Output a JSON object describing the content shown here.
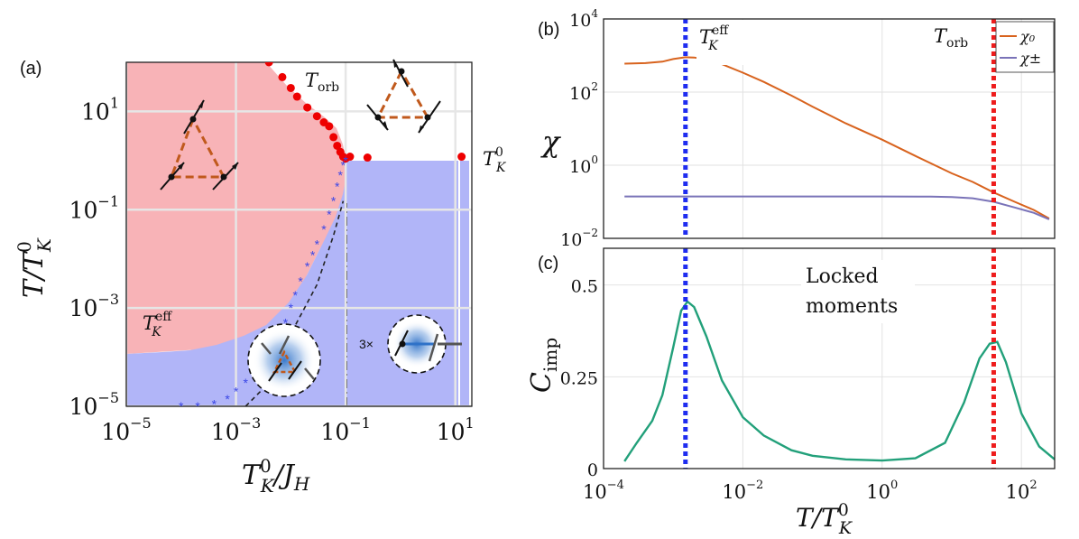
{
  "colors": {
    "red_region": "#f8b3b7",
    "blue_region": "#b1b5f8",
    "red_dots": "#ee0000",
    "blue_stars": "#3a46e6",
    "chi0": "#d8631e",
    "chipm": "#7a73b8",
    "cimp": "#22a07a",
    "vline_blue": "#1f2df0",
    "vline_red": "#ee1c1c",
    "triangle": "#c0591c"
  },
  "chart_data": [
    {
      "id": "a",
      "type": "scatter",
      "panel_label": "(a)",
      "xlabel_main": "T",
      "xlabel_sup": "0",
      "xlabel_sub": "K",
      "xlabel_rest": "/J",
      "xlabel_sub2": "H",
      "ylabel_main": "T/T",
      "ylabel_sup": "0",
      "ylabel_sub": "K",
      "x_scale": "log",
      "y_scale": "log",
      "xlim": [
        1e-05,
        20
      ],
      "ylim": [
        1e-05,
        100
      ],
      "x_ticks": [
        {
          "value": 1e-05,
          "base": "10",
          "exp": "−5"
        },
        {
          "value": 0.001,
          "base": "10",
          "exp": "−3"
        },
        {
          "value": 0.1,
          "base": "10",
          "exp": "−1"
        },
        {
          "value": 10,
          "base": "10",
          "exp": "1"
        }
      ],
      "y_ticks": [
        {
          "value": 1e-05,
          "base": "10",
          "exp": "−5"
        },
        {
          "value": 0.001,
          "base": "10",
          "exp": "−3"
        },
        {
          "value": 0.1,
          "base": "10",
          "exp": "−1"
        },
        {
          "value": 10,
          "base": "10",
          "exp": "1"
        }
      ],
      "annotations": {
        "torb_main": "T",
        "torb_sub": "orb",
        "tk0_main": "T",
        "tk0_sup": "0",
        "tk0_sub": "K",
        "tkeff_main": "T",
        "tkeff_sup": "eff",
        "tkeff_sub": "K",
        "multiplier": "3×"
      },
      "series": [
        {
          "name": "T_orb",
          "marker": "dot",
          "x": [
            0.004,
            0.007,
            0.01,
            0.013,
            0.02,
            0.03,
            0.04,
            0.05,
            0.06,
            0.07,
            0.08,
            0.09,
            0.1,
            0.12,
            0.25,
            13
          ],
          "y": [
            100,
            50,
            30,
            20,
            12,
            8,
            6,
            5,
            3,
            2,
            1.5,
            1.2,
            1.1,
            1.2,
            1.15,
            1.2
          ]
        },
        {
          "name": "T_K_eff",
          "marker": "star",
          "x": [
            0.0001,
            0.0002,
            0.0004,
            0.0007,
            0.001,
            0.0015,
            0.002,
            0.003,
            0.004,
            0.005,
            0.006,
            0.007,
            0.008,
            0.01,
            0.012,
            0.015,
            0.02,
            0.025,
            0.03,
            0.04,
            0.05,
            0.06,
            0.07,
            0.08,
            0.09,
            0.1
          ],
          "y": [
            1e-05,
            1e-05,
            1.1e-05,
            1.4e-05,
            2e-05,
            3e-05,
            4.5e-05,
            7e-05,
            0.0001,
            0.00015,
            0.0002,
            0.00032,
            0.0005,
            0.001,
            0.0018,
            0.0035,
            0.007,
            0.012,
            0.02,
            0.04,
            0.08,
            0.15,
            0.3,
            0.5,
            0.8,
            1.0
          ]
        },
        {
          "name": "dashed_boundary",
          "marker": "none",
          "x": [
            0.0015,
            0.004,
            0.007,
            0.01,
            0.03,
            0.06,
            0.09
          ],
          "y": [
            1e-05,
            3e-05,
            0.00012,
            0.0003,
            0.003,
            0.03,
            0.15
          ]
        }
      ]
    },
    {
      "id": "b",
      "type": "line",
      "panel_label": "(b)",
      "ylabel": "χ",
      "x_scale": "log",
      "y_scale": "log",
      "xlim": [
        0.0001,
        300
      ],
      "ylim": [
        0.01,
        10000
      ],
      "y_ticks": [
        {
          "value": 10000,
          "base": "10",
          "exp": "4"
        },
        {
          "value": 100,
          "base": "10",
          "exp": "2"
        },
        {
          "value": 1,
          "base": "10",
          "exp": "0"
        },
        {
          "value": 0.01,
          "base": "10",
          "exp": "−2"
        }
      ],
      "legend": {
        "position": "top-right",
        "entries": [
          "χ₀",
          "χ±"
        ]
      },
      "vlines": [
        {
          "x": 0.0015,
          "label_main": "T",
          "label_sup": "eff",
          "label_sub": "K",
          "color": "blue"
        },
        {
          "x": 40,
          "label_main": "T",
          "label_sub": "orb",
          "color": "red"
        }
      ],
      "series": [
        {
          "name": "χ₀",
          "x": [
            0.0002,
            0.0004,
            0.0007,
            0.001,
            0.0015,
            0.002,
            0.003,
            0.005,
            0.01,
            0.02,
            0.05,
            0.1,
            0.3,
            1,
            3,
            10,
            20,
            40,
            80,
            150,
            250
          ],
          "y": [
            600,
            620,
            680,
            800,
            900,
            880,
            780,
            580,
            340,
            190,
            80,
            40,
            14,
            5,
            1.8,
            0.6,
            0.35,
            0.18,
            0.1,
            0.06,
            0.035
          ]
        },
        {
          "name": "χ±",
          "x": [
            0.0002,
            0.001,
            0.01,
            0.1,
            1,
            5,
            10,
            20,
            40,
            80,
            150,
            250
          ],
          "y": [
            0.14,
            0.14,
            0.14,
            0.14,
            0.14,
            0.138,
            0.135,
            0.125,
            0.1,
            0.07,
            0.05,
            0.033
          ]
        }
      ]
    },
    {
      "id": "c",
      "type": "line",
      "panel_label": "(c)",
      "ylabel_main": "C",
      "ylabel_sub": "imp",
      "xlabel_main": "T/T",
      "xlabel_sup": "0",
      "xlabel_sub": "K",
      "x_scale": "log",
      "y_scale": "linear",
      "xlim": [
        0.0001,
        300
      ],
      "ylim": [
        0,
        0.6
      ],
      "x_ticks": [
        {
          "value": 0.0001,
          "base": "10",
          "exp": "−4"
        },
        {
          "value": 0.01,
          "base": "10",
          "exp": "−2"
        },
        {
          "value": 1,
          "base": "10",
          "exp": "0"
        },
        {
          "value": 100,
          "base": "10",
          "exp": "2"
        }
      ],
      "y_ticks": [
        {
          "value": 0,
          "label": "0"
        },
        {
          "value": 0.25,
          "label": "0.25"
        },
        {
          "value": 0.5,
          "label": "0.5"
        }
      ],
      "annotation_line1": "Locked",
      "annotation_line2": "moments",
      "vlines": [
        {
          "x": 0.0015,
          "color": "blue"
        },
        {
          "x": 40,
          "color": "red"
        }
      ],
      "series": [
        {
          "name": "C_imp",
          "x": [
            0.0002,
            0.0003,
            0.0005,
            0.0007,
            0.001,
            0.0013,
            0.0016,
            0.002,
            0.003,
            0.005,
            0.01,
            0.02,
            0.05,
            0.1,
            0.3,
            1,
            3,
            8,
            15,
            25,
            35,
            45,
            60,
            100,
            180,
            300
          ],
          "y": [
            0.02,
            0.07,
            0.13,
            0.2,
            0.33,
            0.43,
            0.455,
            0.44,
            0.36,
            0.24,
            0.14,
            0.09,
            0.05,
            0.035,
            0.025,
            0.022,
            0.028,
            0.07,
            0.18,
            0.3,
            0.34,
            0.345,
            0.29,
            0.15,
            0.06,
            0.025
          ]
        }
      ]
    }
  ]
}
